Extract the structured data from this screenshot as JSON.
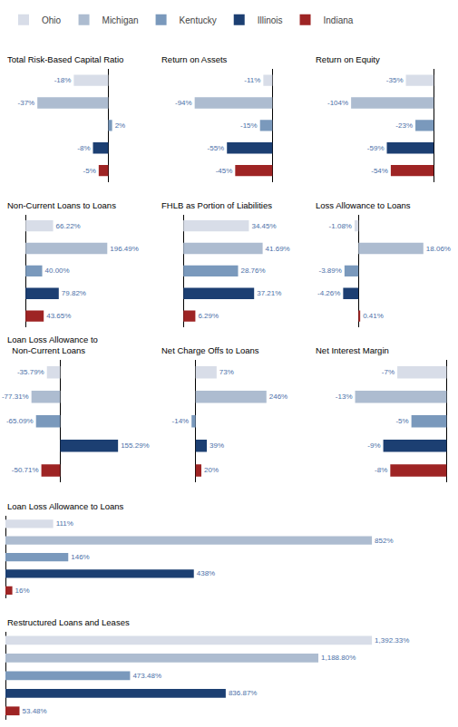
{
  "chart_data": [
    {
      "type": "bar",
      "title": "Total Risk-Based Capital Ratio",
      "orientation": "horizontal",
      "categories": [
        "Ohio",
        "Michigan",
        "Kentucky",
        "Illinois",
        "Indiana"
      ],
      "colors": [
        "#d8dde8",
        "#adbcd0",
        "#7a99bc",
        "#1c3f72",
        "#9e2424"
      ],
      "values": [
        -18,
        -37,
        2,
        -8,
        -5
      ],
      "value_labels": [
        "-18%",
        "-37%",
        "2%",
        "-8%",
        "-5%"
      ],
      "xlim": [
        -53.65,
        18.65
      ],
      "data_labels": true,
      "tick_labels": false,
      "grid": false,
      "legend": "top"
    },
    {
      "type": "bar",
      "title": "Return on Assets",
      "orientation": "horizontal",
      "categories": [
        "Ohio",
        "Michigan",
        "Kentucky",
        "Illinois",
        "Indiana"
      ],
      "colors": [
        "#d8dde8",
        "#adbcd0",
        "#7a99bc",
        "#1c3f72",
        "#9e2424"
      ],
      "values": [
        -11,
        -94,
        -15,
        -55,
        -45
      ],
      "value_labels": [
        "-11%",
        "-94%",
        "-15%",
        "-55%",
        "-45%"
      ],
      "xlim": [
        -136.3,
        31.3
      ],
      "data_labels": true,
      "tick_labels": false,
      "grid": false
    },
    {
      "type": "bar",
      "title": "Return on Equity",
      "orientation": "horizontal",
      "categories": [
        "Ohio",
        "Michigan",
        "Kentucky",
        "Illinois",
        "Indiana"
      ],
      "colors": [
        "#d8dde8",
        "#adbcd0",
        "#7a99bc",
        "#1c3f72",
        "#9e2424"
      ],
      "values": [
        -35,
        -104,
        -23,
        -59,
        -54
      ],
      "value_labels": [
        "-35%",
        "-104%",
        "-23%",
        "-59%",
        "-54%"
      ],
      "xlim": [
        -150.8,
        23.8
      ],
      "data_labels": true,
      "tick_labels": false,
      "grid": false
    },
    {
      "type": "bar",
      "title": "Non-Current Loans to Loans",
      "orientation": "horizontal",
      "categories": [
        "Ohio",
        "Michigan",
        "Kentucky",
        "Illinois",
        "Indiana"
      ],
      "colors": [
        "#d8dde8",
        "#adbcd0",
        "#7a99bc",
        "#1c3f72",
        "#9e2424"
      ],
      "values": [
        66.22,
        196.49,
        40.0,
        79.82,
        43.65
      ],
      "value_labels": [
        "66.22%",
        "196.49%",
        "40.00%",
        "79.82%",
        "43.65%"
      ],
      "xlim": [
        -48.4205,
        284.9105
      ],
      "data_labels": true,
      "tick_labels": false,
      "grid": false
    },
    {
      "type": "bar",
      "title": "FHLB as Portion of Liabilities",
      "orientation": "horizontal",
      "categories": [
        "Ohio",
        "Michigan",
        "Kentucky",
        "Illinois",
        "Indiana"
      ],
      "colors": [
        "#d8dde8",
        "#adbcd0",
        "#7a99bc",
        "#1c3f72",
        "#9e2424"
      ],
      "values": [
        34.45,
        41.69,
        28.76,
        37.21,
        6.29
      ],
      "value_labels": [
        "34.45%",
        "41.69%",
        "28.76%",
        "37.21%",
        "6.29%"
      ],
      "xlim": [
        -12.4705,
        60.4505
      ],
      "data_labels": true,
      "tick_labels": false,
      "grid": false
    },
    {
      "type": "bar",
      "title": "Loss Allowance to Loans",
      "orientation": "horizontal",
      "categories": [
        "Ohio",
        "Michigan",
        "Kentucky",
        "Illinois",
        "Indiana"
      ],
      "colors": [
        "#d8dde8",
        "#adbcd0",
        "#7a99bc",
        "#1c3f72",
        "#9e2424"
      ],
      "values": [
        -1.08,
        18.06,
        -3.89,
        -4.26,
        0.41
      ],
      "value_labels": [
        "-1.08%",
        "18.06%",
        "-3.89%",
        "-4.26%",
        "0.41%"
      ],
      "xlim": [
        -12.387,
        26.187
      ],
      "data_labels": true,
      "tick_labels": false,
      "grid": false
    },
    {
      "type": "bar",
      "title": "Loan Loss Allowance to\n  Non-Current Loans",
      "orientation": "horizontal",
      "categories": [
        "Ohio",
        "Michigan",
        "Kentucky",
        "Illinois",
        "Indiana"
      ],
      "colors": [
        "#d8dde8",
        "#adbcd0",
        "#7a99bc",
        "#1c3f72",
        "#9e2424"
      ],
      "values": [
        -35.79,
        -77.31,
        -65.09,
        155.29,
        -50.71
      ],
      "value_labels": [
        "-35.79%",
        "-77.31%",
        "-65.09%",
        "155.29%",
        "-50.71%"
      ],
      "xlim": [
        -147.1905,
        225.1705
      ],
      "data_labels": true,
      "tick_labels": false,
      "grid": false
    },
    {
      "type": "bar",
      "title": "Net Charge Offs to Loans",
      "orientation": "horizontal",
      "categories": [
        "Ohio",
        "Michigan",
        "Kentucky",
        "Illinois",
        "Indiana"
      ],
      "colors": [
        "#d8dde8",
        "#adbcd0",
        "#7a99bc",
        "#1c3f72",
        "#9e2424"
      ],
      "values": [
        73,
        246,
        -14,
        39,
        20
      ],
      "value_labels": [
        "73%",
        "246%",
        "-14%",
        "39%",
        "20%"
      ],
      "xlim": [
        -124.7,
        356.7
      ],
      "data_labels": true,
      "tick_labels": false,
      "grid": false
    },
    {
      "type": "bar",
      "title": "Net Interest Margin",
      "orientation": "horizontal",
      "categories": [
        "Ohio",
        "Michigan",
        "Kentucky",
        "Illinois",
        "Indiana"
      ],
      "colors": [
        "#d8dde8",
        "#adbcd0",
        "#7a99bc",
        "#1c3f72",
        "#9e2424"
      ],
      "values": [
        -7,
        -13,
        -5,
        -9,
        -8
      ],
      "value_labels": [
        "-7%",
        "-13%",
        "-5%",
        "-9%",
        "-8%"
      ],
      "xlim": [
        -18.85,
        0.85
      ],
      "data_labels": true,
      "tick_labels": false,
      "grid": false
    },
    {
      "type": "bar",
      "title": "Loan Loss Allowance to Loans",
      "orientation": "horizontal",
      "categories": [
        "Ohio",
        "Michigan",
        "Kentucky",
        "Illinois",
        "Indiana"
      ],
      "colors": [
        "#d8dde8",
        "#adbcd0",
        "#7a99bc",
        "#1c3f72",
        "#9e2424"
      ],
      "values": [
        111,
        852,
        146,
        438,
        16
      ],
      "value_labels": [
        "111%",
        "852%",
        "146%",
        "438%",
        "16%"
      ],
      "xlim": [
        0,
        1039.44
      ],
      "data_labels": true,
      "tick_labels": false,
      "grid": false
    },
    {
      "type": "bar",
      "title": "Restructured Loans and Leases",
      "orientation": "horizontal",
      "categories": [
        "Ohio",
        "Michigan",
        "Kentucky",
        "Illinois",
        "Indiana"
      ],
      "colors": [
        "#d8dde8",
        "#adbcd0",
        "#7a99bc",
        "#1c3f72",
        "#9e2424"
      ],
      "values": [
        1392.33,
        1188.8,
        473.48,
        836.87,
        53.48
      ],
      "value_labels": [
        "1,392.33%",
        "1,188.80%",
        "473.48%",
        "836.87%",
        "53.48%"
      ],
      "xlim": [
        0,
        1698.6426
      ],
      "data_labels": true,
      "tick_labels": false,
      "grid": false
    }
  ]
}
